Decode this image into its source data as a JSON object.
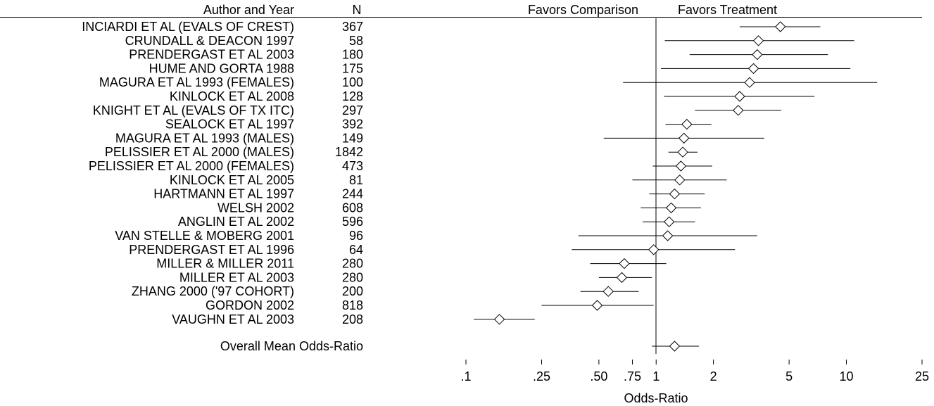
{
  "chart_data": {
    "type": "forest",
    "headers": {
      "author": "Author and Year",
      "n": "N",
      "favors_left": "Favors Comparison",
      "favors_right": "Favors Treatment"
    },
    "xlabel": "Odds-Ratio",
    "x_scale": "log",
    "xlim": [
      0.1,
      25
    ],
    "reference_line": 1,
    "x_ticks": [
      {
        "value": 0.1,
        "label": ".1"
      },
      {
        "value": 0.25,
        "label": ".25"
      },
      {
        "value": 0.5,
        "label": ".50"
      },
      {
        "value": 0.75,
        "label": ".75"
      },
      {
        "value": 1,
        "label": "1"
      },
      {
        "value": 2,
        "label": "2"
      },
      {
        "value": 5,
        "label": "5"
      },
      {
        "value": 10,
        "label": "10"
      },
      {
        "value": 25,
        "label": "25"
      }
    ],
    "studies": [
      {
        "author": "INCIARDI ET AL (EVALS OF CREST)",
        "n": "367",
        "or": 4.5,
        "lo": 2.75,
        "hi": 7.3
      },
      {
        "author": "CRUNDALL & DEACON 1997",
        "n": "58",
        "or": 3.45,
        "lo": 1.11,
        "hi": 11.0
      },
      {
        "author": "PRENDERGAST ET AL 2003",
        "n": "180",
        "or": 3.4,
        "lo": 1.5,
        "hi": 8.0
      },
      {
        "author": "HUME AND GORTA 1988",
        "n": "175",
        "or": 3.25,
        "lo": 1.06,
        "hi": 10.5
      },
      {
        "author": "MAGURA ET AL 1993 (FEMALES)",
        "n": "100",
        "or": 3.1,
        "lo": 0.67,
        "hi": 14.5
      },
      {
        "author": "KINLOCK ET AL 2008",
        "n": "128",
        "or": 2.75,
        "lo": 1.1,
        "hi": 6.8
      },
      {
        "author": "KNIGHT ET AL (EVALS OF TX ITC)",
        "n": "297",
        "or": 2.7,
        "lo": 1.6,
        "hi": 4.55
      },
      {
        "author": "SEALOCK ET AL 1997",
        "n": "392",
        "or": 1.45,
        "lo": 1.12,
        "hi": 1.95
      },
      {
        "author": "MAGURA ET AL 1993 (MALES)",
        "n": "149",
        "or": 1.4,
        "lo": 0.53,
        "hi": 3.7
      },
      {
        "author": "PELISSIER ET AL 2000 (MALES)",
        "n": "1842",
        "or": 1.38,
        "lo": 1.16,
        "hi": 1.65
      },
      {
        "author": "PELISSIER ET AL 2000 (FEMALES)",
        "n": "473",
        "or": 1.35,
        "lo": 0.96,
        "hi": 1.97
      },
      {
        "author": "KINLOCK ET AL 2005",
        "n": "81",
        "or": 1.33,
        "lo": 0.75,
        "hi": 2.35
      },
      {
        "author": "HARTMANN ET AL 1997",
        "n": "244",
        "or": 1.25,
        "lo": 0.92,
        "hi": 1.8
      },
      {
        "author": "WELSH 2002",
        "n": "608",
        "or": 1.2,
        "lo": 0.83,
        "hi": 1.72
      },
      {
        "author": "ANGLIN ET AL 2002",
        "n": "596",
        "or": 1.17,
        "lo": 0.85,
        "hi": 1.6
      },
      {
        "author": "VAN STELLE & MOBERG 2001",
        "n": "96",
        "or": 1.15,
        "lo": 0.39,
        "hi": 3.4
      },
      {
        "author": "PRENDERGAST ET AL 1996",
        "n": "64",
        "or": 0.97,
        "lo": 0.36,
        "hi": 2.6
      },
      {
        "author": "MILLER & MILLER 2011",
        "n": "280",
        "or": 0.68,
        "lo": 0.45,
        "hi": 1.13
      },
      {
        "author": "MILLER ET AL 2003",
        "n": "280",
        "or": 0.66,
        "lo": 0.5,
        "hi": 0.95
      },
      {
        "author": "ZHANG 2000 ('97 COHORT)",
        "n": "200",
        "or": 0.56,
        "lo": 0.4,
        "hi": 0.81
      },
      {
        "author": "GORDON 2002",
        "n": "818",
        "or": 0.49,
        "lo": 0.25,
        "hi": 0.97
      },
      {
        "author": "VAUGHN ET AL 2003",
        "n": "208",
        "or": 0.15,
        "lo": 0.11,
        "hi": 0.23
      }
    ],
    "overall": {
      "label": "Overall Mean Odds-Ratio",
      "or": 1.25,
      "lo": 0.95,
      "hi": 1.68
    }
  }
}
